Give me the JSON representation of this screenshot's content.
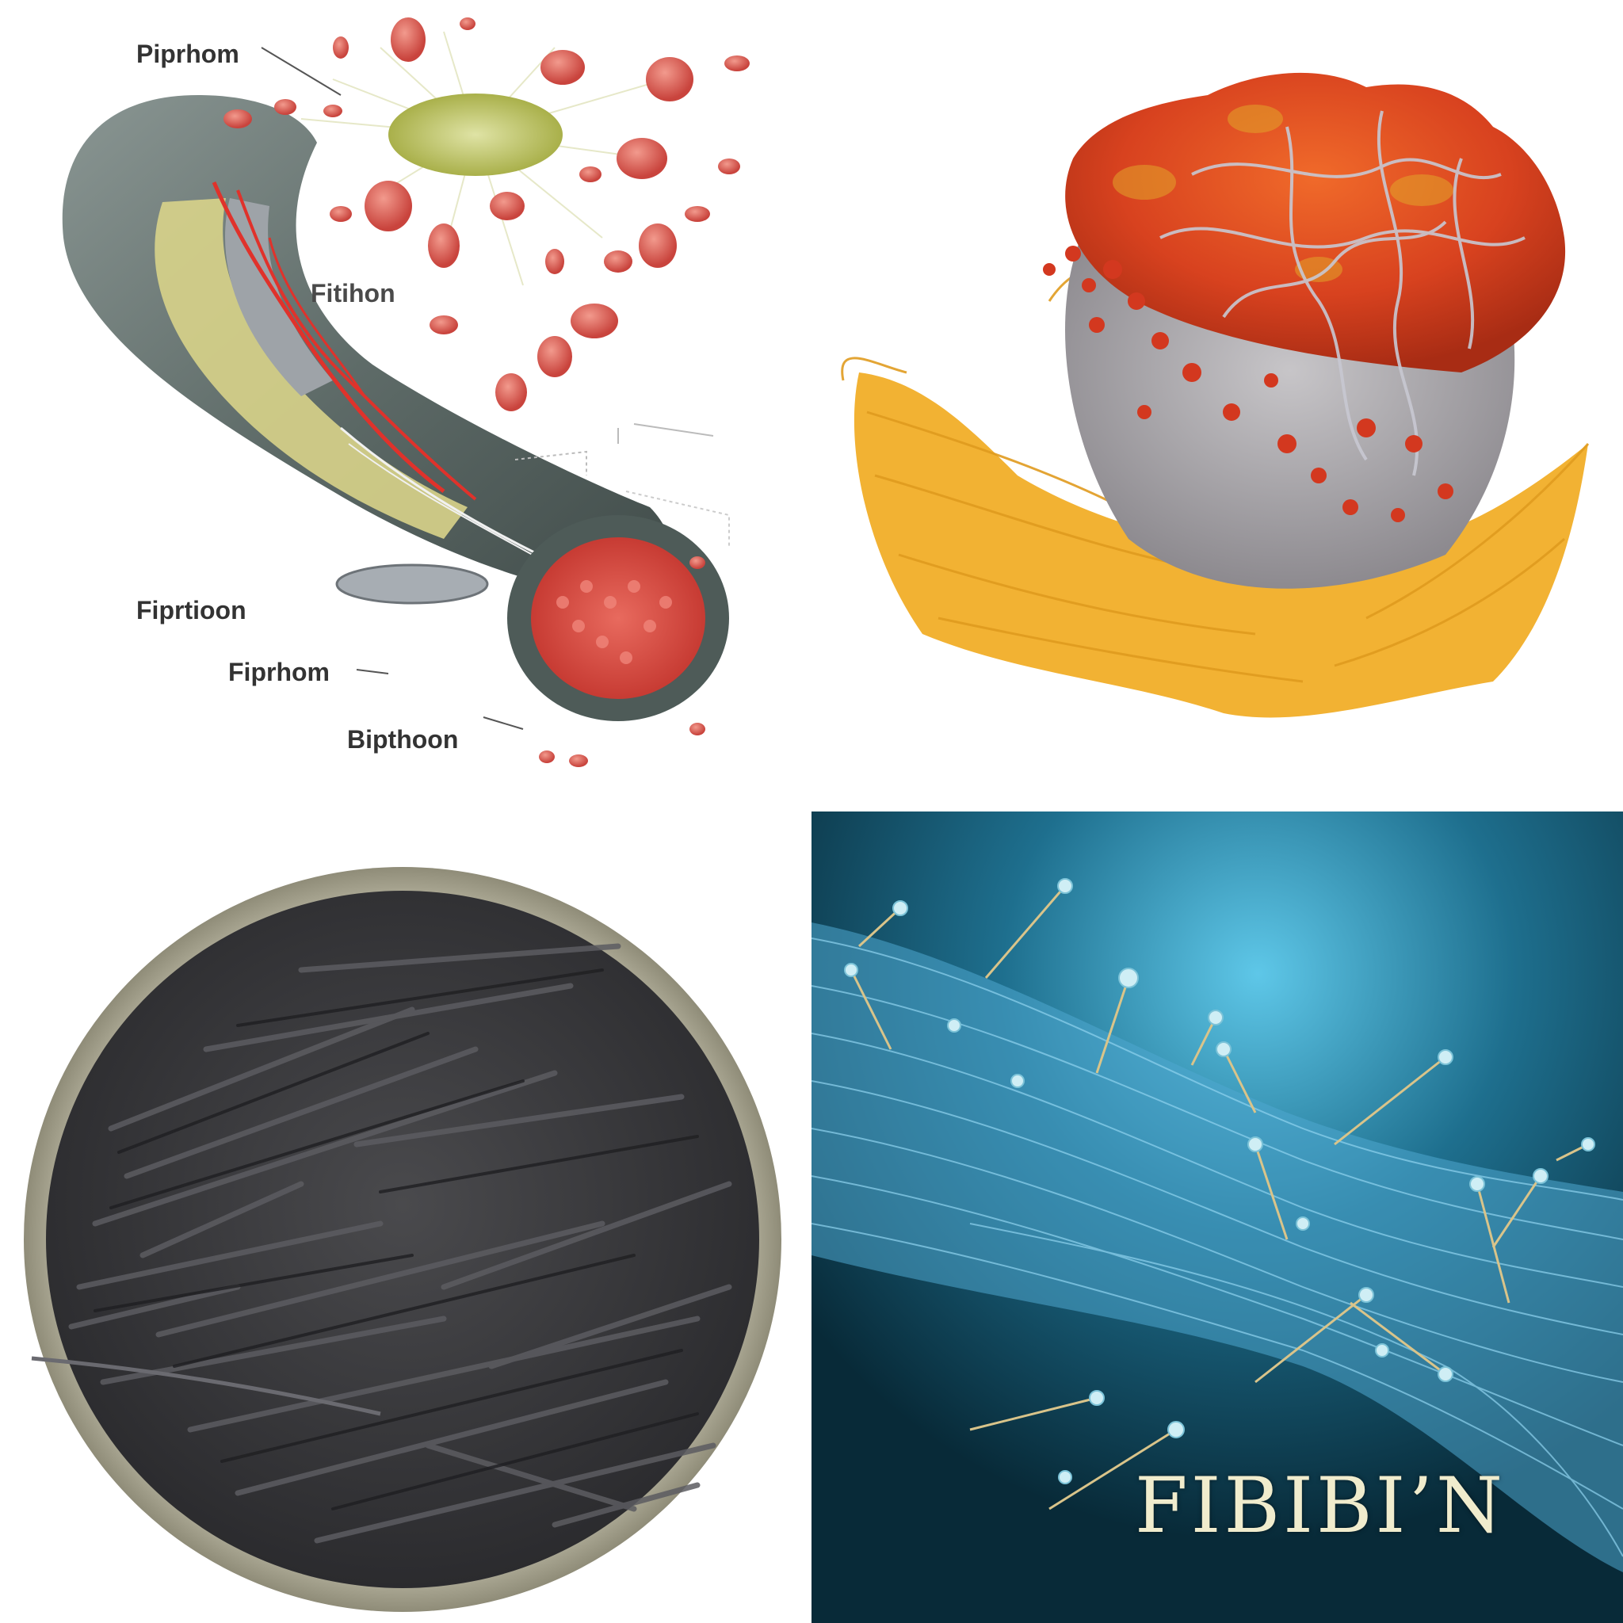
{
  "panels": {
    "top_left": {
      "labels": {
        "label_1": "Piprhom",
        "label_2": "Fitihon",
        "label_3": "Fiprtioon",
        "label_4": "Fiprhom",
        "label_5": "Bipthoon"
      }
    },
    "bottom_right": {
      "title": "FIBIBI’N"
    }
  },
  "colors": {
    "vessel_wall": "#5e6b68",
    "blood_cell": "#d9534a",
    "fibrin_yellow": "#f2b233",
    "clot_red": "#d8421f",
    "fiber_dark": "#3a3a3c",
    "bowl": "#a9a68f",
    "fibrin_blue": "#5bb8e0",
    "background_blue": "#0c3a4e"
  }
}
